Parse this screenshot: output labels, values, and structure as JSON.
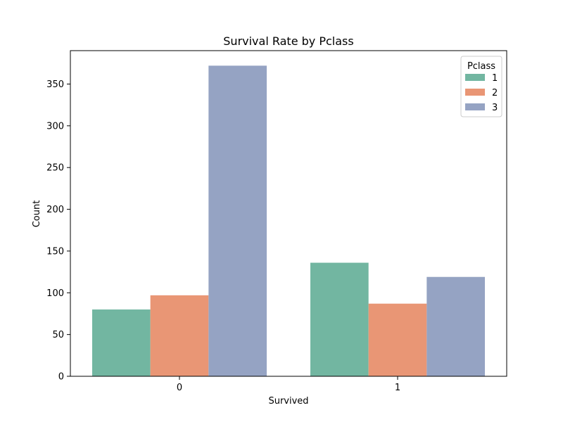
{
  "chart_data": {
    "type": "bar",
    "title": "Survival Rate by Pclass",
    "xlabel": "Survived",
    "ylabel": "Count",
    "categories": [
      "0",
      "1"
    ],
    "ylim": [
      0,
      390
    ],
    "yticks": [
      0,
      50,
      100,
      150,
      200,
      250,
      300,
      350
    ],
    "legend": {
      "title": "Pclass",
      "position": "top-right"
    },
    "series": [
      {
        "name": "1",
        "color": "#72b6a1",
        "values": [
          80,
          136
        ]
      },
      {
        "name": "2",
        "color": "#e99675",
        "values": [
          97,
          87
        ]
      },
      {
        "name": "3",
        "color": "#95a3c3",
        "values": [
          372,
          119
        ]
      }
    ]
  }
}
